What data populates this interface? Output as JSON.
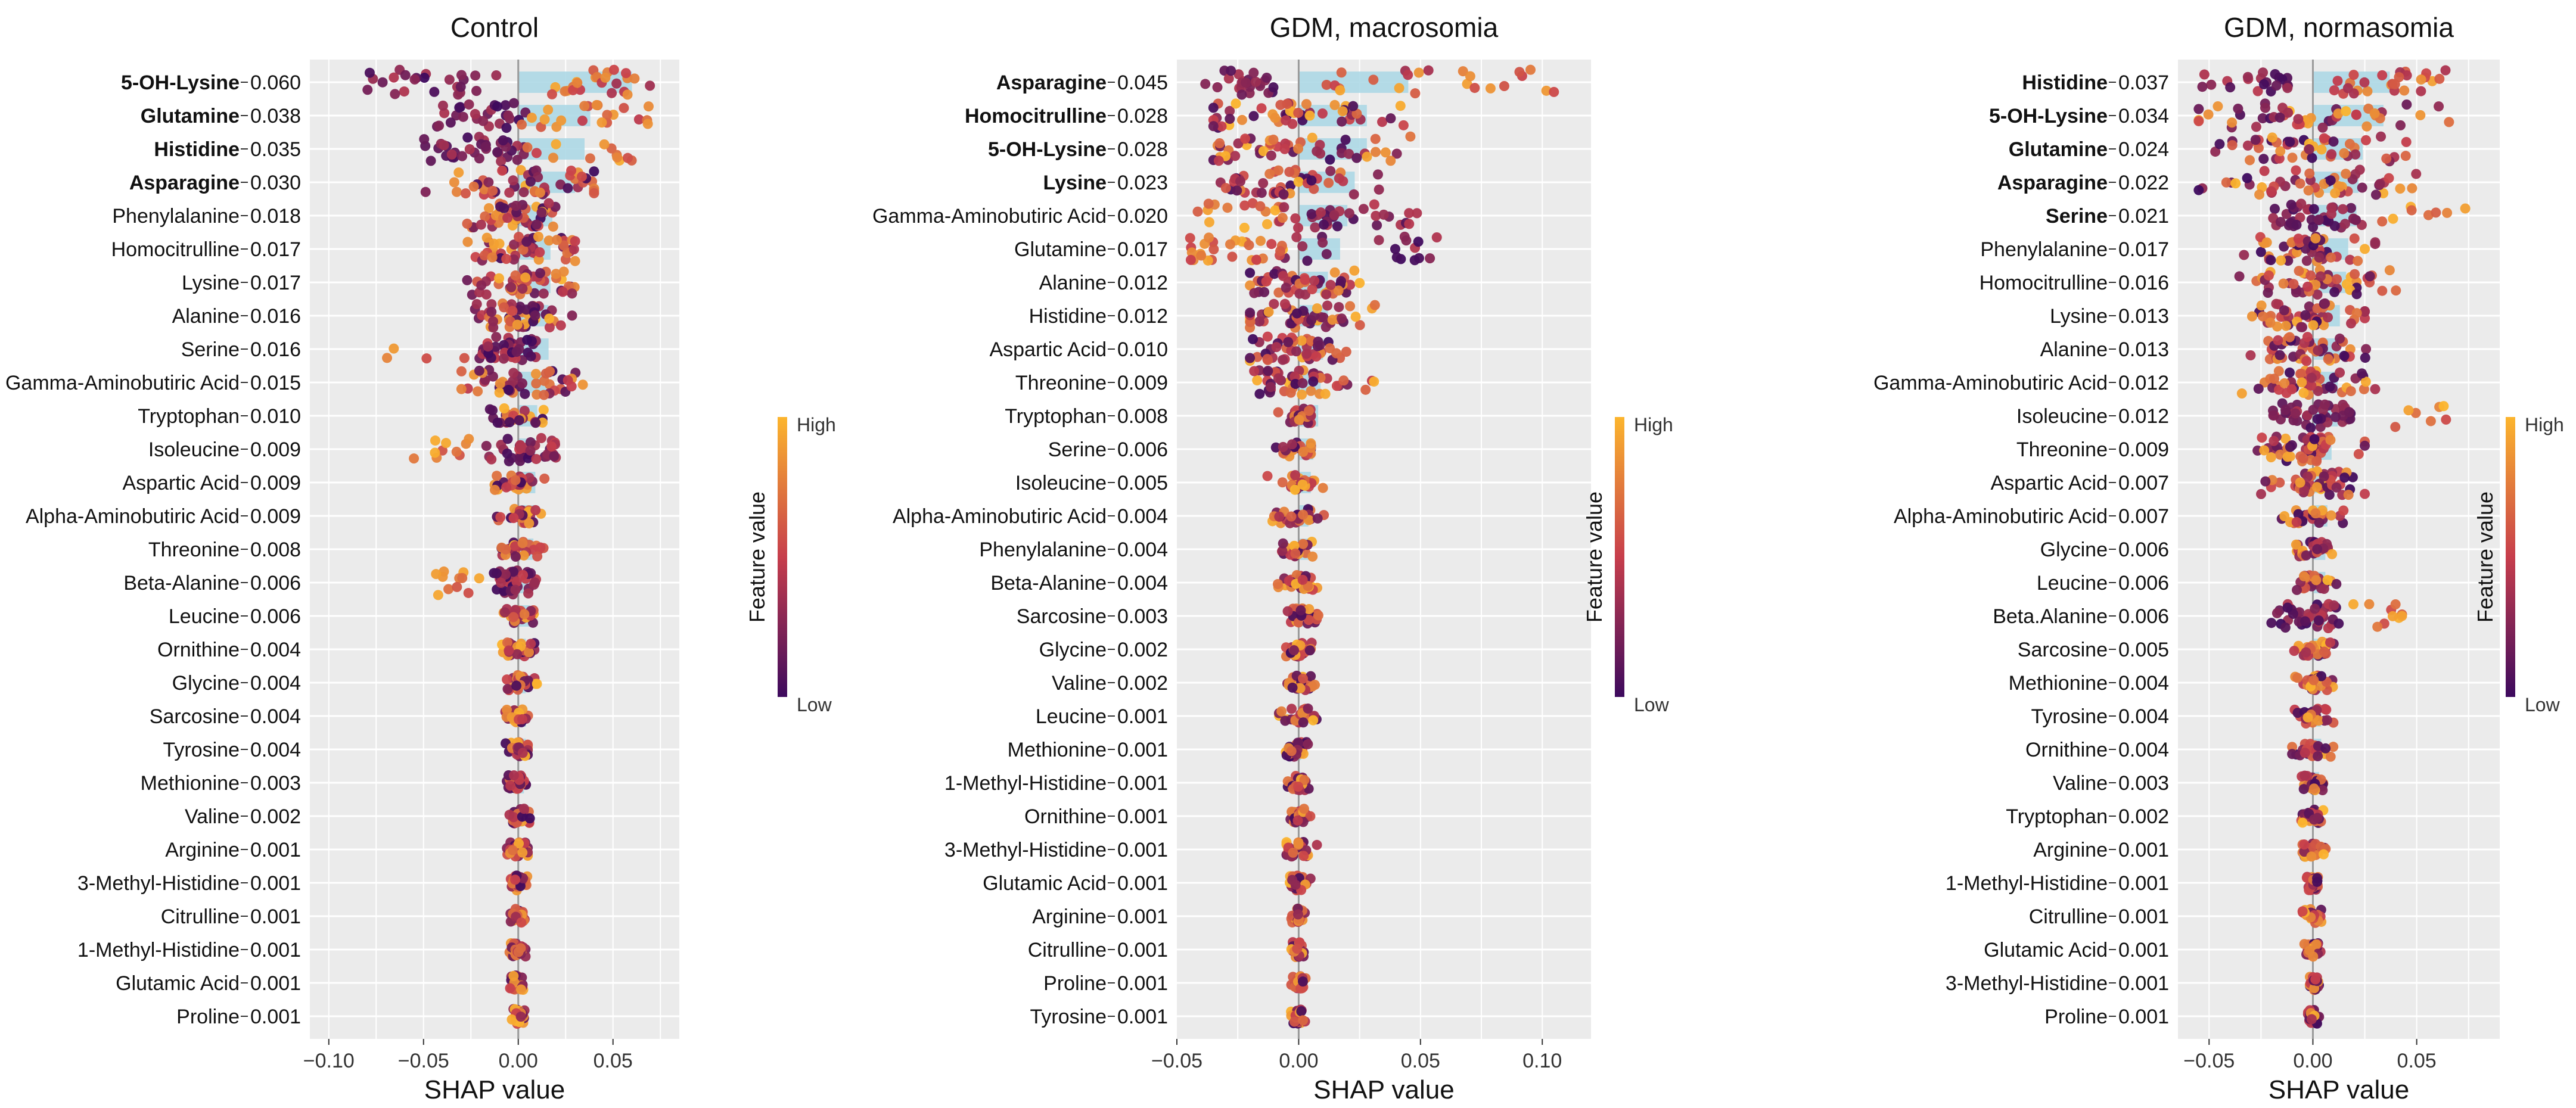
{
  "colors": {
    "panel_bg": "#ebebeb",
    "gridline": "#ffffff",
    "importance_bar": "#add8e6",
    "zero_line": "#999999",
    "low": "#3d0a5e",
    "mid": "#c73e4c",
    "high": "#fcb52d"
  },
  "chart_data": [
    {
      "type": "scatter",
      "subtype": "shap-beeswarm",
      "title": "Control",
      "xlabel": "SHAP value",
      "ylabel": "",
      "xlim": [
        -0.11,
        0.085
      ],
      "xticks": [
        -0.1,
        -0.05,
        0.0,
        0.05
      ],
      "xtick_labels": [
        "−0.10",
        "−0.05",
        "0.00",
        "0.05"
      ],
      "grid": true,
      "legend": {
        "title": "Feature value",
        "high": "High",
        "low": "Low",
        "placement": "right"
      },
      "features": [
        {
          "name": "5-OH-Lysine",
          "value": "0.060",
          "bold": true,
          "lo": -0.095,
          "hi": 0.075,
          "spread": "wide-bimodal"
        },
        {
          "name": "Glutamine",
          "value": "0.038",
          "bold": true,
          "lo": -0.045,
          "hi": 0.07,
          "spread": "bimodal"
        },
        {
          "name": "Histidine",
          "value": "0.035",
          "bold": true,
          "lo": -0.05,
          "hi": 0.065,
          "spread": "bimodal"
        },
        {
          "name": "Asparagine",
          "value": "0.030",
          "bold": true,
          "lo": -0.07,
          "hi": 0.04,
          "spread": "wide"
        },
        {
          "name": "Phenylalanine",
          "value": "0.018",
          "bold": false,
          "lo": -0.03,
          "hi": 0.03,
          "spread": "medium"
        },
        {
          "name": "Homocitrulline",
          "value": "0.017",
          "bold": false,
          "lo": -0.04,
          "hi": 0.03,
          "spread": "medium"
        },
        {
          "name": "Lysine",
          "value": "0.017",
          "bold": false,
          "lo": -0.03,
          "hi": 0.035,
          "spread": "medium"
        },
        {
          "name": "Alanine",
          "value": "0.016",
          "bold": false,
          "lo": -0.03,
          "hi": 0.03,
          "spread": "medium"
        },
        {
          "name": "Serine",
          "value": "0.016",
          "bold": false,
          "lo": -0.07,
          "hi": 0.01,
          "spread": "left-tail-high"
        },
        {
          "name": "Gamma-Aminobutiric Acid",
          "value": "0.015",
          "bold": false,
          "lo": -0.03,
          "hi": 0.04,
          "spread": "medium"
        },
        {
          "name": "Tryptophan",
          "value": "0.010",
          "bold": false,
          "lo": -0.02,
          "hi": 0.03,
          "spread": "narrow"
        },
        {
          "name": "Isoleucine",
          "value": "0.009",
          "bold": false,
          "lo": -0.06,
          "hi": 0.02,
          "spread": "left-tail-high"
        },
        {
          "name": "Aspartic Acid",
          "value": "0.009",
          "bold": false,
          "lo": -0.02,
          "hi": 0.03,
          "spread": "narrow"
        },
        {
          "name": "Alpha-Aminobutiric Acid",
          "value": "0.009",
          "bold": false,
          "lo": -0.015,
          "hi": 0.025,
          "spread": "narrow"
        },
        {
          "name": "Threonine",
          "value": "0.008",
          "bold": false,
          "lo": -0.02,
          "hi": 0.02,
          "spread": "narrow"
        },
        {
          "name": "Beta-Alanine",
          "value": "0.006",
          "bold": false,
          "lo": -0.045,
          "hi": 0.01,
          "spread": "left-tail-high"
        },
        {
          "name": "Leucine",
          "value": "0.006",
          "bold": false,
          "lo": -0.025,
          "hi": 0.01,
          "spread": "narrow"
        },
        {
          "name": "Ornithine",
          "value": "0.004",
          "bold": false,
          "lo": -0.02,
          "hi": 0.01,
          "spread": "narrow"
        },
        {
          "name": "Glycine",
          "value": "0.004",
          "bold": false,
          "lo": -0.02,
          "hi": 0.01,
          "spread": "narrow"
        },
        {
          "name": "Sarcosine",
          "value": "0.004",
          "bold": false,
          "lo": -0.01,
          "hi": 0.015,
          "spread": "narrow"
        },
        {
          "name": "Tyrosine",
          "value": "0.004",
          "bold": false,
          "lo": -0.02,
          "hi": 0.005,
          "spread": "narrow"
        },
        {
          "name": "Methionine",
          "value": "0.003",
          "bold": false,
          "lo": -0.015,
          "hi": 0.005,
          "spread": "narrow"
        },
        {
          "name": "Valine",
          "value": "0.002",
          "bold": false,
          "lo": -0.01,
          "hi": 0.01,
          "spread": "narrow"
        },
        {
          "name": "Arginine",
          "value": "0.001",
          "bold": false,
          "lo": -0.015,
          "hi": 0.005,
          "spread": "narrow"
        },
        {
          "name": "3-Methyl-Histidine",
          "value": "0.001",
          "bold": false,
          "lo": -0.01,
          "hi": 0.005,
          "spread": "narrow"
        },
        {
          "name": "Citrulline",
          "value": "0.001",
          "bold": false,
          "lo": -0.01,
          "hi": 0.005,
          "spread": "narrow"
        },
        {
          "name": "1-Methyl-Histidine",
          "value": "0.001",
          "bold": false,
          "lo": -0.01,
          "hi": 0.005,
          "spread": "narrow"
        },
        {
          "name": "Glutamic Acid",
          "value": "0.001",
          "bold": false,
          "lo": -0.005,
          "hi": 0.008,
          "spread": "narrow"
        },
        {
          "name": "Proline",
          "value": "0.001",
          "bold": false,
          "lo": -0.005,
          "hi": 0.005,
          "spread": "narrow"
        }
      ]
    },
    {
      "type": "scatter",
      "subtype": "shap-beeswarm",
      "title": "GDM, macrosomia",
      "xlabel": "SHAP value",
      "ylabel": "",
      "xlim": [
        -0.05,
        0.12
      ],
      "xticks": [
        -0.05,
        0.0,
        0.05,
        0.1
      ],
      "xtick_labels": [
        "−0.05",
        "0.00",
        "0.05",
        "0.10"
      ],
      "grid": true,
      "legend": {
        "title": "Feature value",
        "high": "High",
        "low": "Low",
        "placement": "right"
      },
      "features": [
        {
          "name": "Asparagine",
          "value": "0.045",
          "bold": true,
          "lo": -0.04,
          "hi": 0.11,
          "spread": "wide-bimodal"
        },
        {
          "name": "Homocitrulline",
          "value": "0.028",
          "bold": true,
          "lo": -0.035,
          "hi": 0.07,
          "spread": "wide"
        },
        {
          "name": "5-OH-Lysine",
          "value": "0.028",
          "bold": true,
          "lo": -0.035,
          "hi": 0.06,
          "spread": "wide"
        },
        {
          "name": "Lysine",
          "value": "0.023",
          "bold": true,
          "lo": -0.035,
          "hi": 0.05,
          "spread": "wide"
        },
        {
          "name": "Gamma-Aminobutiric Acid",
          "value": "0.020",
          "bold": false,
          "lo": -0.045,
          "hi": 0.05,
          "spread": "left-high"
        },
        {
          "name": "Glutamine",
          "value": "0.017",
          "bold": false,
          "lo": -0.045,
          "hi": 0.06,
          "spread": "left-high"
        },
        {
          "name": "Alanine",
          "value": "0.012",
          "bold": false,
          "lo": -0.02,
          "hi": 0.035,
          "spread": "medium"
        },
        {
          "name": "Histidine",
          "value": "0.012",
          "bold": false,
          "lo": -0.02,
          "hi": 0.045,
          "spread": "medium"
        },
        {
          "name": "Aspartic Acid",
          "value": "0.010",
          "bold": false,
          "lo": -0.02,
          "hi": 0.025,
          "spread": "medium"
        },
        {
          "name": "Threonine",
          "value": "0.009",
          "bold": false,
          "lo": -0.02,
          "hi": 0.04,
          "spread": "medium"
        },
        {
          "name": "Tryptophan",
          "value": "0.008",
          "bold": false,
          "lo": -0.025,
          "hi": 0.005,
          "spread": "narrow"
        },
        {
          "name": "Serine",
          "value": "0.006",
          "bold": false,
          "lo": -0.03,
          "hi": 0.005,
          "spread": "narrow"
        },
        {
          "name": "Isoleucine",
          "value": "0.005",
          "bold": false,
          "lo": -0.015,
          "hi": 0.025,
          "spread": "narrow"
        },
        {
          "name": "Alpha-Aminobutiric Acid",
          "value": "0.004",
          "bold": false,
          "lo": -0.015,
          "hi": 0.02,
          "spread": "narrow"
        },
        {
          "name": "Phenylalanine",
          "value": "0.004",
          "bold": false,
          "lo": -0.015,
          "hi": 0.015,
          "spread": "narrow"
        },
        {
          "name": "Beta-Alanine",
          "value": "0.004",
          "bold": false,
          "lo": -0.01,
          "hi": 0.015,
          "spread": "narrow"
        },
        {
          "name": "Sarcosine",
          "value": "0.003",
          "bold": false,
          "lo": -0.015,
          "hi": 0.015,
          "spread": "narrow"
        },
        {
          "name": "Glycine",
          "value": "0.002",
          "bold": false,
          "lo": -0.01,
          "hi": 0.01,
          "spread": "narrow"
        },
        {
          "name": "Valine",
          "value": "0.002",
          "bold": false,
          "lo": -0.01,
          "hi": 0.015,
          "spread": "narrow"
        },
        {
          "name": "Leucine",
          "value": "0.001",
          "bold": false,
          "lo": -0.01,
          "hi": 0.015,
          "spread": "narrow"
        },
        {
          "name": "Methionine",
          "value": "0.001",
          "bold": false,
          "lo": -0.01,
          "hi": 0.01,
          "spread": "narrow"
        },
        {
          "name": "1-Methyl-Histidine",
          "value": "0.001",
          "bold": false,
          "lo": -0.005,
          "hi": 0.01,
          "spread": "narrow"
        },
        {
          "name": "Ornithine",
          "value": "0.001",
          "bold": false,
          "lo": -0.005,
          "hi": 0.01,
          "spread": "narrow"
        },
        {
          "name": "3-Methyl-Histidine",
          "value": "0.001",
          "bold": false,
          "lo": -0.005,
          "hi": 0.02,
          "spread": "narrow"
        },
        {
          "name": "Glutamic Acid",
          "value": "0.001",
          "bold": false,
          "lo": -0.005,
          "hi": 0.01,
          "spread": "narrow"
        },
        {
          "name": "Arginine",
          "value": "0.001",
          "bold": false,
          "lo": -0.005,
          "hi": 0.005,
          "spread": "narrow"
        },
        {
          "name": "Citrulline",
          "value": "0.001",
          "bold": false,
          "lo": -0.005,
          "hi": 0.005,
          "spread": "narrow"
        },
        {
          "name": "Proline",
          "value": "0.001",
          "bold": false,
          "lo": -0.005,
          "hi": 0.005,
          "spread": "narrow"
        },
        {
          "name": "Tyrosine",
          "value": "0.001",
          "bold": false,
          "lo": -0.005,
          "hi": 0.005,
          "spread": "narrow"
        }
      ]
    },
    {
      "type": "scatter",
      "subtype": "shap-beeswarm",
      "title": "GDM, normasomia",
      "xlabel": "SHAP value",
      "ylabel": "",
      "xlim": [
        -0.065,
        0.09
      ],
      "xticks": [
        -0.05,
        0.0,
        0.05
      ],
      "xtick_labels": [
        "−0.05",
        "0.00",
        "0.05"
      ],
      "grid": true,
      "legend": {
        "title": "Feature value",
        "high": "High",
        "low": "Low",
        "placement": "right"
      },
      "features": [
        {
          "name": "Histidine",
          "value": "0.037",
          "bold": true,
          "lo": -0.055,
          "hi": 0.065,
          "spread": "wide-bimodal"
        },
        {
          "name": "5-OH-Lysine",
          "value": "0.034",
          "bold": true,
          "lo": -0.055,
          "hi": 0.085,
          "spread": "wide"
        },
        {
          "name": "Glutamine",
          "value": "0.024",
          "bold": true,
          "lo": -0.05,
          "hi": 0.045,
          "spread": "wide"
        },
        {
          "name": "Asparagine",
          "value": "0.022",
          "bold": true,
          "lo": -0.055,
          "hi": 0.05,
          "spread": "wide"
        },
        {
          "name": "Serine",
          "value": "0.021",
          "bold": true,
          "lo": -0.02,
          "hi": 0.08,
          "spread": "right-tail-high"
        },
        {
          "name": "Phenylalanine",
          "value": "0.017",
          "bold": false,
          "lo": -0.04,
          "hi": 0.03,
          "spread": "medium"
        },
        {
          "name": "Homocitrulline",
          "value": "0.016",
          "bold": false,
          "lo": -0.04,
          "hi": 0.04,
          "spread": "medium"
        },
        {
          "name": "Lysine",
          "value": "0.013",
          "bold": false,
          "lo": -0.035,
          "hi": 0.025,
          "spread": "medium"
        },
        {
          "name": "Alanine",
          "value": "0.013",
          "bold": false,
          "lo": -0.03,
          "hi": 0.035,
          "spread": "medium"
        },
        {
          "name": "Gamma-Aminobutiric Acid",
          "value": "0.012",
          "bold": false,
          "lo": -0.04,
          "hi": 0.03,
          "spread": "medium"
        },
        {
          "name": "Isoleucine",
          "value": "0.012",
          "bold": false,
          "lo": -0.02,
          "hi": 0.065,
          "spread": "right-tail-high"
        },
        {
          "name": "Threonine",
          "value": "0.009",
          "bold": false,
          "lo": -0.03,
          "hi": 0.025,
          "spread": "medium"
        },
        {
          "name": "Aspartic Acid",
          "value": "0.007",
          "bold": false,
          "lo": -0.025,
          "hi": 0.025,
          "spread": "medium"
        },
        {
          "name": "Alpha-Aminobutiric Acid",
          "value": "0.007",
          "bold": false,
          "lo": -0.03,
          "hi": 0.02,
          "spread": "narrow"
        },
        {
          "name": "Glycine",
          "value": "0.006",
          "bold": false,
          "lo": -0.01,
          "hi": 0.025,
          "spread": "narrow"
        },
        {
          "name": "Leucine",
          "value": "0.006",
          "bold": false,
          "lo": -0.01,
          "hi": 0.025,
          "spread": "narrow"
        },
        {
          "name": "Beta.Alanine",
          "value": "0.006",
          "bold": false,
          "lo": -0.02,
          "hi": 0.045,
          "spread": "right-tail-high"
        },
        {
          "name": "Sarcosine",
          "value": "0.005",
          "bold": false,
          "lo": -0.025,
          "hi": 0.01,
          "spread": "narrow"
        },
        {
          "name": "Methionine",
          "value": "0.004",
          "bold": false,
          "lo": -0.01,
          "hi": 0.02,
          "spread": "narrow"
        },
        {
          "name": "Tyrosine",
          "value": "0.004",
          "bold": false,
          "lo": -0.01,
          "hi": 0.02,
          "spread": "narrow"
        },
        {
          "name": "Ornithine",
          "value": "0.004",
          "bold": false,
          "lo": -0.01,
          "hi": 0.025,
          "spread": "narrow"
        },
        {
          "name": "Valine",
          "value": "0.003",
          "bold": false,
          "lo": -0.015,
          "hi": 0.005,
          "spread": "narrow"
        },
        {
          "name": "Tryptophan",
          "value": "0.002",
          "bold": false,
          "lo": -0.015,
          "hi": 0.005,
          "spread": "narrow"
        },
        {
          "name": "Arginine",
          "value": "0.001",
          "bold": false,
          "lo": -0.005,
          "hi": 0.015,
          "spread": "narrow"
        },
        {
          "name": "1-Methyl-Histidine",
          "value": "0.001",
          "bold": false,
          "lo": -0.005,
          "hi": 0.005,
          "spread": "narrow"
        },
        {
          "name": "Citrulline",
          "value": "0.001",
          "bold": false,
          "lo": -0.005,
          "hi": 0.01,
          "spread": "narrow"
        },
        {
          "name": "Glutamic Acid",
          "value": "0.001",
          "bold": false,
          "lo": -0.008,
          "hi": 0.005,
          "spread": "narrow"
        },
        {
          "name": "3-Methyl-Histidine",
          "value": "0.001",
          "bold": false,
          "lo": -0.005,
          "hi": 0.005,
          "spread": "narrow"
        },
        {
          "name": "Proline",
          "value": "0.001",
          "bold": false,
          "lo": -0.005,
          "hi": 0.005,
          "spread": "narrow"
        }
      ]
    }
  ]
}
